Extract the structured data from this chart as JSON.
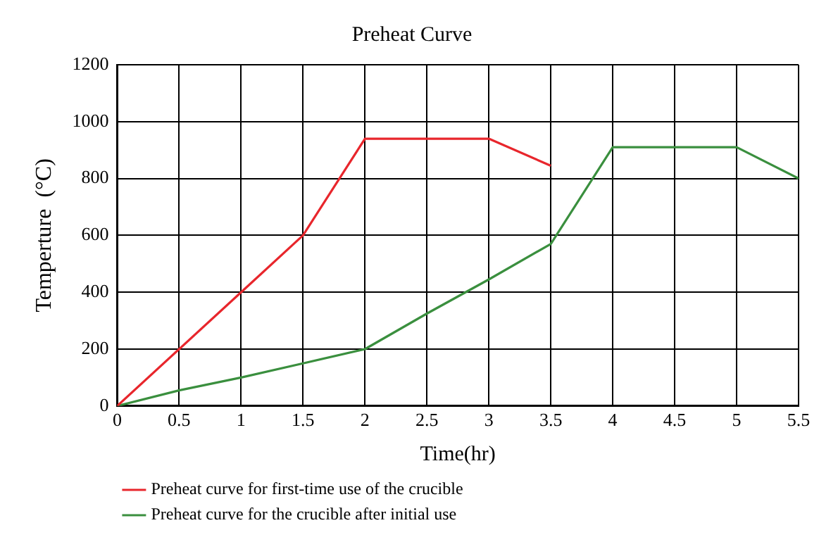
{
  "chart_data": {
    "type": "line",
    "title": "Preheat Curve",
    "xlabel": "Time(hr)",
    "ylabel": "Temperture  (°C)",
    "xlim": [
      0,
      5.5
    ],
    "xticks": [
      0,
      0.5,
      1,
      1.5,
      2,
      2.5,
      3,
      3.5,
      4,
      4.5,
      5,
      5.5
    ],
    "ylim": [
      0,
      1200
    ],
    "yticks": [
      0,
      200,
      400,
      600,
      800,
      1000,
      1200
    ],
    "grid": true,
    "legend": "bottom",
    "marker": "none",
    "line_style": "solid",
    "series": [
      {
        "name": "Preheat curve for first-time use of the crucible",
        "color": "#e8262c",
        "x": [
          0,
          0.5,
          1,
          1.5,
          2,
          3,
          3.5
        ],
        "values": [
          0,
          200,
          400,
          600,
          940,
          940,
          845
        ]
      },
      {
        "name": "Preheat curve for the crucible after initial use",
        "color": "#3a8f3e",
        "x": [
          0,
          0.5,
          1,
          1.5,
          2,
          2.5,
          3,
          3.5,
          4,
          5,
          5.5
        ],
        "values": [
          0,
          55,
          100,
          150,
          200,
          325,
          445,
          570,
          910,
          910,
          800
        ]
      }
    ]
  }
}
